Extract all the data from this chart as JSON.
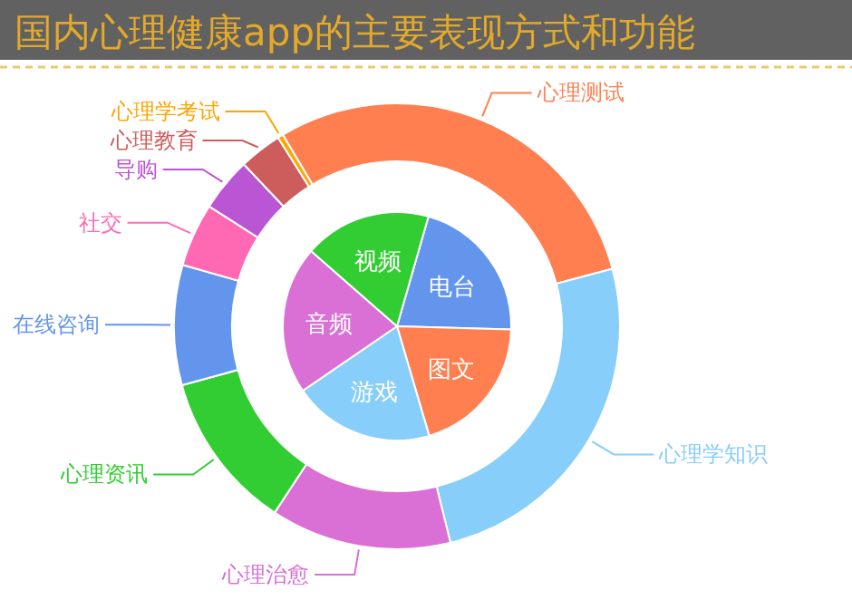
{
  "chart_data": [
    {
      "type": "pie",
      "title": "国内心理健康app的主要表现方式和功能",
      "categories": [
        "电台",
        "图文",
        "游戏",
        "音频",
        "视频"
      ],
      "values": [
        21,
        20,
        20,
        21,
        18
      ],
      "colors": [
        "#6495ed",
        "#ff7f50",
        "#87cefa",
        "#da70d6",
        "#32cd32"
      ]
    },
    {
      "type": "donut",
      "categories": [
        "心理测试",
        "心理学知识",
        "心理治愈",
        "心理资讯",
        "在线咨询",
        "社交",
        "导购",
        "心理教育",
        "心理学考试"
      ],
      "values": [
        29.4,
        25.3,
        13.1,
        11.5,
        8.7,
        4.6,
        3.9,
        3.1,
        0.4
      ],
      "colors": [
        "#ff7f50",
        "#87cefa",
        "#da70d6",
        "#32cd32",
        "#6495ed",
        "#ff69b4",
        "#ba55d3",
        "#cd5c5c",
        "#ffa500"
      ]
    }
  ]
}
